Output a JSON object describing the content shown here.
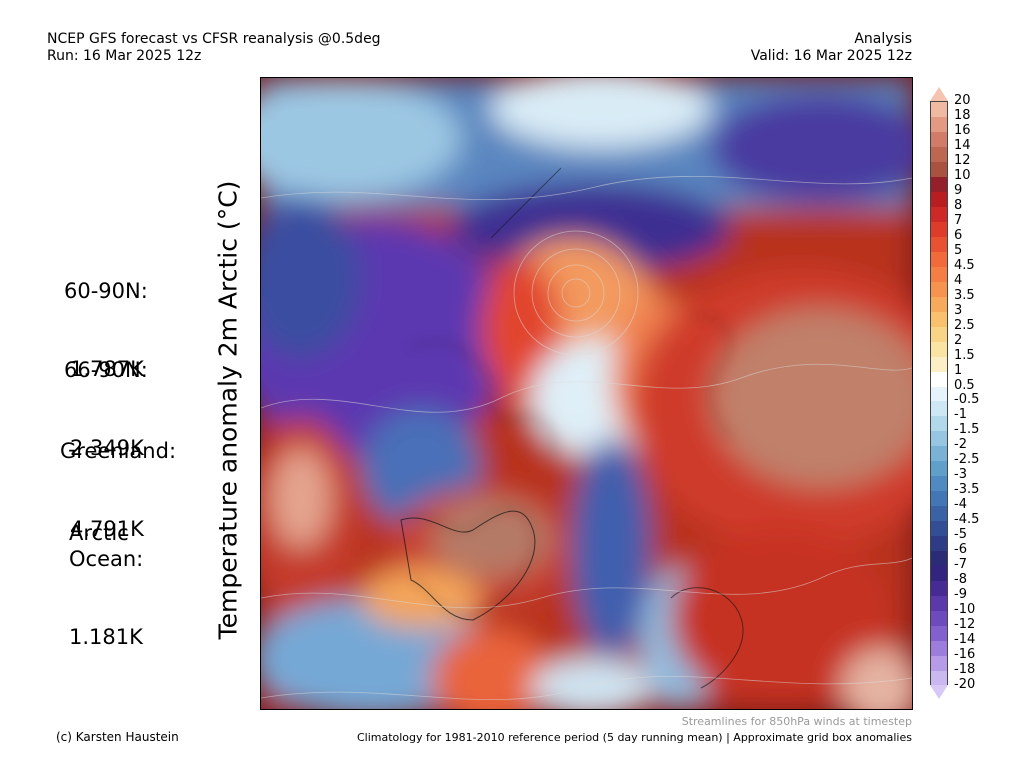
{
  "header": {
    "title": "NCEP GFS forecast vs CFSR reanalysis @0.5deg",
    "run": "Run: 16 Mar 2025 12z",
    "mode": "Analysis",
    "valid": "Valid: 16 Mar 2025 12z"
  },
  "y_axis_label": "Temperature anomaly 2m Arctic (°C)",
  "stats": [
    {
      "label": "60-90N:",
      "value": "1.787K"
    },
    {
      "label": "66-90N:",
      "value": "2.349K"
    },
    {
      "label": "Greenland:",
      "value": "4.791K"
    },
    {
      "label": "Arctic\nOcean:",
      "value": "1.181K"
    }
  ],
  "colorbar": {
    "levels": [
      "20",
      "18",
      "16",
      "14",
      "12",
      "10",
      "9",
      "8",
      "7",
      "6",
      "5",
      "4.5",
      "4",
      "3.5",
      "3",
      "2.5",
      "2",
      "1.5",
      "1",
      "0.5",
      "-0.5",
      "-1",
      "-1.5",
      "-2",
      "-2.5",
      "-3",
      "-3.5",
      "-4",
      "-4.5",
      "-5",
      "-6",
      "-7",
      "-8",
      "-9",
      "-10",
      "-12",
      "-14",
      "-16",
      "-18",
      "-20"
    ],
    "colors": [
      "#f0b9a2",
      "#e29a82",
      "#d07c68",
      "#bd6652",
      "#a9523f",
      "#93202a",
      "#b81d22",
      "#cd2a27",
      "#de3c2b",
      "#e85233",
      "#f16a3a",
      "#f47e44",
      "#f6944f",
      "#f8aa5c",
      "#f9c06e",
      "#fad486",
      "#fbe3a3",
      "#fcefc6",
      "#ffffff",
      "#e7f3fa",
      "#cde7f4",
      "#b2d8ec",
      "#96c6e2",
      "#7ab2d6",
      "#619fcb",
      "#4f8bc0",
      "#4276b4",
      "#3a62a5",
      "#344e96",
      "#2e3c85",
      "#2b2c75",
      "#33257f",
      "#462b94",
      "#5a39aa",
      "#6c4bbd",
      "#8261cf",
      "#9b7ddc",
      "#b69ce8",
      "#cab8f1"
    ]
  },
  "footer": {
    "credit": "(c) Karsten Haustein",
    "streamlines": "Streamlines for 850hPa winds at timestep",
    "climatology": "Climatology for 1981-2010 reference period (5 day running mean) | Approximate grid box anomalies"
  }
}
